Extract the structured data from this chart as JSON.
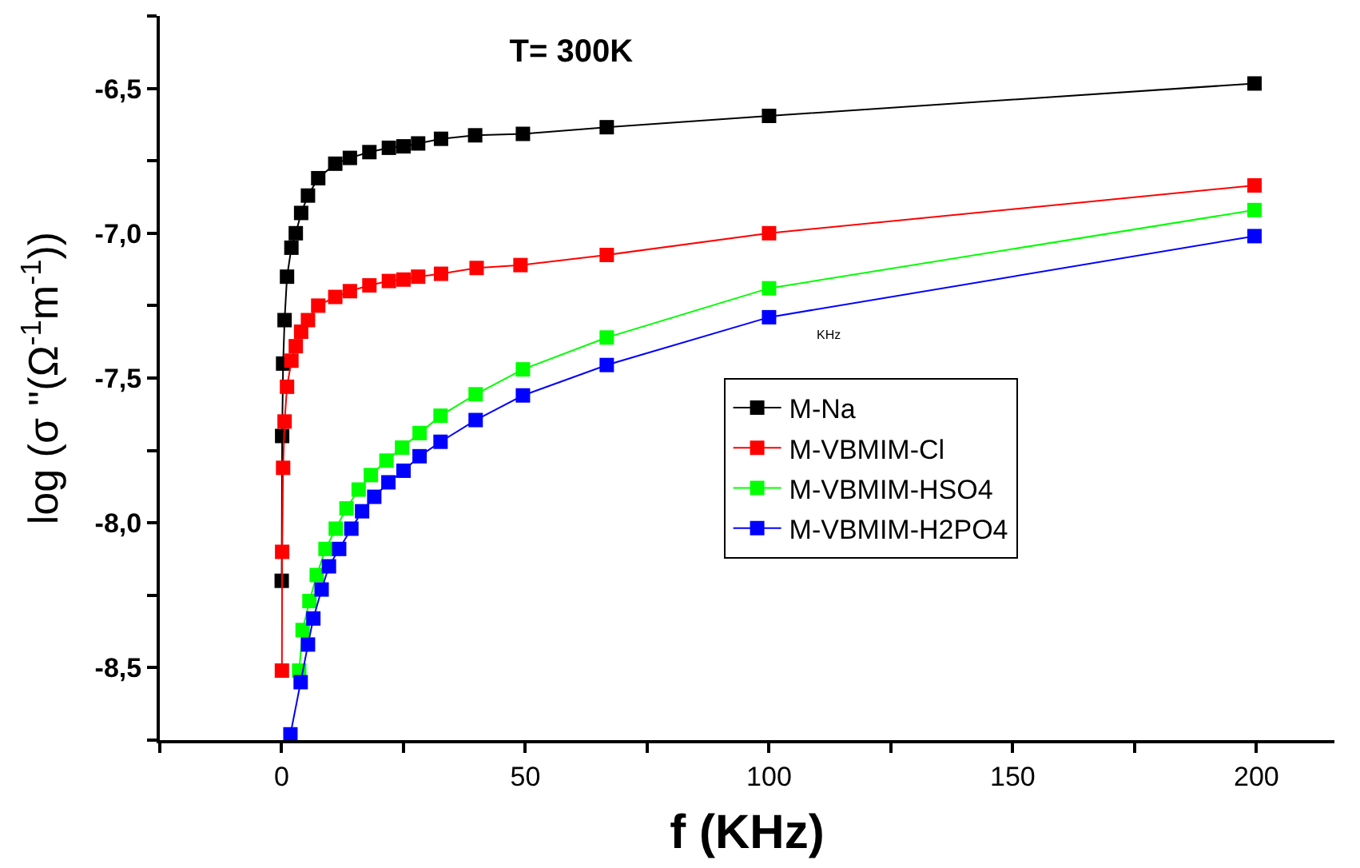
{
  "chart_data": {
    "type": "line",
    "title": "T= 300K",
    "xlabel": "f (KHz)",
    "ylabel": "log (σ ''(Ω$^{-1}$m$^{-1}$))",
    "annotations": [
      "KHz"
    ],
    "xlim": [
      -25,
      216
    ],
    "ylim": [
      -8.75,
      -6.25
    ],
    "xticks": [
      {
        "value": -25,
        "label": null
      },
      0,
      {
        "value": 25,
        "label": null
      },
      50,
      {
        "value": 75,
        "label": null
      },
      100,
      {
        "value": 125,
        "label": null
      },
      150,
      {
        "value": 175,
        "label": null
      },
      200
    ],
    "yticks": [
      {
        "value": -8.75,
        "label": null
      },
      {
        "value": -8.5,
        "label": "-8,5"
      },
      {
        "value": -8.25,
        "label": null
      },
      {
        "value": -8.0,
        "label": "-8,0"
      },
      {
        "value": -7.75,
        "label": null
      },
      {
        "value": -7.5,
        "label": "-7,5"
      },
      {
        "value": -7.25,
        "label": null
      },
      {
        "value": -7.0,
        "label": "-7,0"
      },
      {
        "value": -6.75,
        "label": null
      },
      {
        "value": -6.5,
        "label": "-6,5"
      },
      {
        "value": -6.25,
        "label": null
      }
    ],
    "legend": "right",
    "marker": "square",
    "line_style": "solid",
    "series": [
      {
        "name": "M-Na",
        "color": "#000000",
        "x": [
          0.01,
          0.1,
          0.3,
          0.6,
          1.1,
          2.0,
          2.9,
          4.0,
          5.4,
          7.5,
          11,
          14,
          18,
          22,
          25,
          28,
          32.7,
          39.7,
          49.5,
          66.7,
          100,
          199.6
        ],
        "values": [
          -8.2,
          -7.7,
          -7.45,
          -7.3,
          -7.15,
          -7.05,
          -7.0,
          -6.93,
          -6.87,
          -6.81,
          -6.76,
          -6.74,
          -6.72,
          -6.705,
          -6.7,
          -6.69,
          -6.674,
          -6.662,
          -6.657,
          -6.634,
          -6.595,
          -6.483
        ]
      },
      {
        "name": "M-VBMIM-Cl",
        "color": "#ff0000",
        "x": [
          0.05,
          0.1,
          0.3,
          0.6,
          1.1,
          2.0,
          2.9,
          4.0,
          5.4,
          7.5,
          11,
          14,
          18,
          22,
          25,
          28,
          32.7,
          40,
          49,
          66.7,
          100,
          199.6
        ],
        "values": [
          -8.51,
          -8.1,
          -7.81,
          -7.65,
          -7.53,
          -7.44,
          -7.39,
          -7.34,
          -7.3,
          -7.25,
          -7.22,
          -7.2,
          -7.18,
          -7.165,
          -7.16,
          -7.15,
          -7.14,
          -7.12,
          -7.11,
          -7.075,
          -7.0,
          -6.835
        ]
      },
      {
        "name": "M-VBMIM-HSO4",
        "color": "#00ff00",
        "x": [
          3.6,
          4.3,
          5.7,
          7.2,
          9,
          11.1,
          13.3,
          15.8,
          18.3,
          21.5,
          24.7,
          28.3,
          32.6,
          39.8,
          49.5,
          66.7,
          100,
          199.6
        ],
        "values": [
          -8.51,
          -8.37,
          -8.27,
          -8.18,
          -8.09,
          -8.02,
          -7.95,
          -7.885,
          -7.835,
          -7.785,
          -7.74,
          -7.69,
          -7.63,
          -7.556,
          -7.47,
          -7.36,
          -7.19,
          -6.92
        ]
      },
      {
        "name": "M-VBMIM-H2PO4",
        "color": "#0000ff",
        "x": [
          1.8,
          3.9,
          5.4,
          6.5,
          8.2,
          9.7,
          11.8,
          14.3,
          16.5,
          19,
          21.9,
          25,
          28.3,
          32.6,
          39.8,
          49.5,
          66.7,
          100,
          199.6
        ],
        "values": [
          -8.73,
          -8.55,
          -8.42,
          -8.33,
          -8.23,
          -8.15,
          -8.09,
          -8.02,
          -7.96,
          -7.91,
          -7.86,
          -7.82,
          -7.77,
          -7.72,
          -7.645,
          -7.56,
          -7.455,
          -7.29,
          -7.01
        ]
      }
    ]
  }
}
